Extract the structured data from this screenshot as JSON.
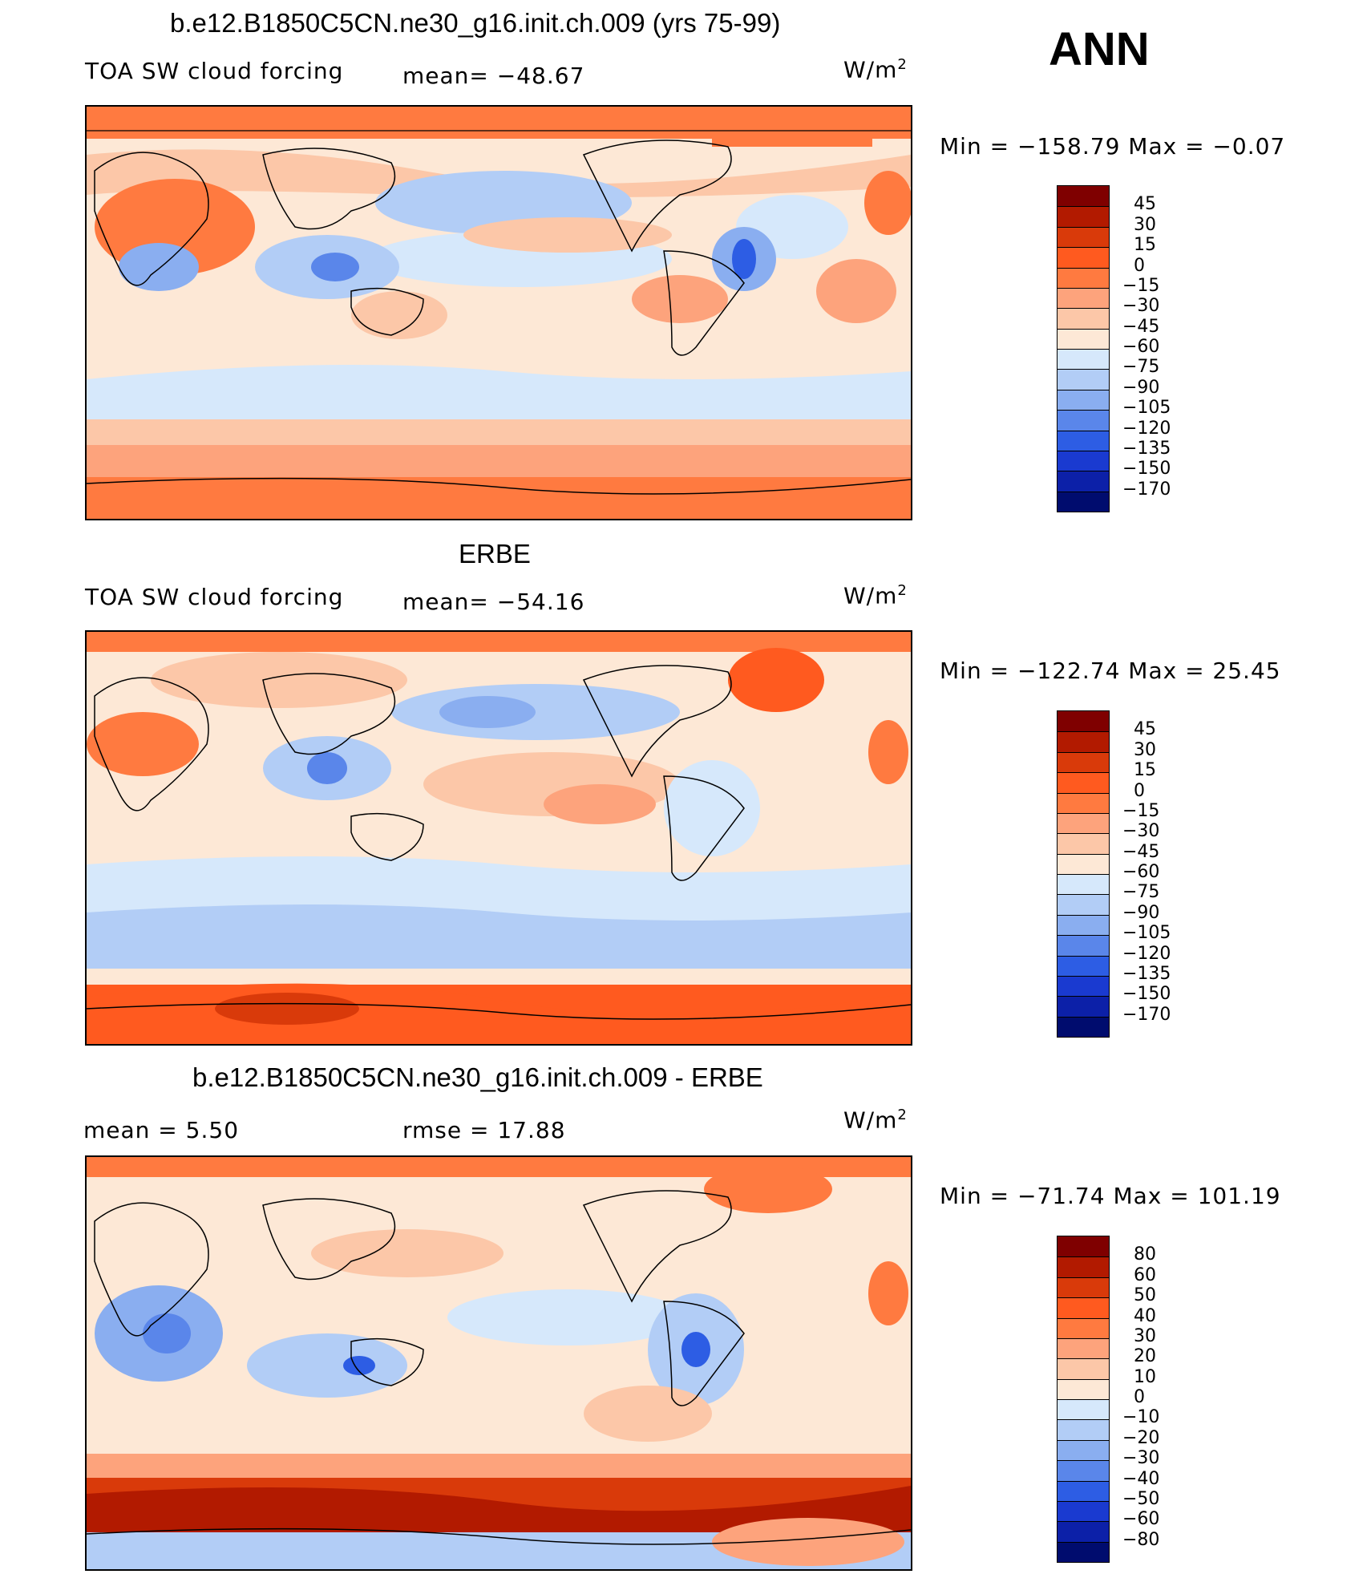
{
  "season": "ANN",
  "panels": [
    {
      "title": "b.e12.B1850C5CN.ne30_g16.init.ch.009 (yrs 75-99)",
      "variable": "TOA SW cloud forcing",
      "stat1": "mean=  −48.67",
      "stat2": "",
      "units": "W/m",
      "units_exp": "2",
      "minmax": "Min  =  −158.79  Max  =    −0.07",
      "levels": [
        "45",
        "30",
        "15",
        "0",
        "−15",
        "−30",
        "−45",
        "−60",
        "−75",
        "−90",
        "−105",
        "−120",
        "−135",
        "−150",
        "−170"
      ],
      "colors": [
        "#7f0000",
        "#b21a00",
        "#d93a0a",
        "#ff5a1f",
        "#ff7a40",
        "#fda37c",
        "#fcc7a8",
        "#fde8d6",
        "#d6e8fb",
        "#b2cdf6",
        "#8aaef0",
        "#5a86ea",
        "#2d5de4",
        "#1a3ad0",
        "#0c20a8",
        "#000c6e"
      ]
    },
    {
      "title": "ERBE",
      "variable": "TOA SW cloud forcing",
      "stat1": "mean=  −54.16",
      "stat2": "",
      "units": "W/m",
      "units_exp": "2",
      "minmax": "Min  =  −122.74  Max  =    25.45",
      "levels": [
        "45",
        "30",
        "15",
        "0",
        "−15",
        "−30",
        "−45",
        "−60",
        "−75",
        "−90",
        "−105",
        "−120",
        "−135",
        "−150",
        "−170"
      ],
      "colors": [
        "#7f0000",
        "#b21a00",
        "#d93a0a",
        "#ff5a1f",
        "#ff7a40",
        "#fda37c",
        "#fcc7a8",
        "#fde8d6",
        "#d6e8fb",
        "#b2cdf6",
        "#8aaef0",
        "#5a86ea",
        "#2d5de4",
        "#1a3ad0",
        "#0c20a8",
        "#000c6e"
      ]
    },
    {
      "title": "b.e12.B1850C5CN.ne30_g16.init.ch.009 - ERBE",
      "variable": "mean  =      5.50",
      "stat1": "rmse  =    17.88",
      "stat2": "",
      "units": "W/m",
      "units_exp": "2",
      "minmax": "Min  =  −71.74  Max  =  101.19",
      "levels": [
        "80",
        "60",
        "50",
        "40",
        "30",
        "20",
        "10",
        "0",
        "−10",
        "−20",
        "−30",
        "−40",
        "−50",
        "−60",
        "−80"
      ],
      "colors": [
        "#7f0000",
        "#b21a00",
        "#d93a0a",
        "#ff5a1f",
        "#ff7a40",
        "#fda37c",
        "#fcc7a8",
        "#fde8d6",
        "#d6e8fb",
        "#b2cdf6",
        "#8aaef0",
        "#5a86ea",
        "#2d5de4",
        "#1a3ad0",
        "#0c20a8",
        "#000c6e"
      ]
    }
  ]
}
